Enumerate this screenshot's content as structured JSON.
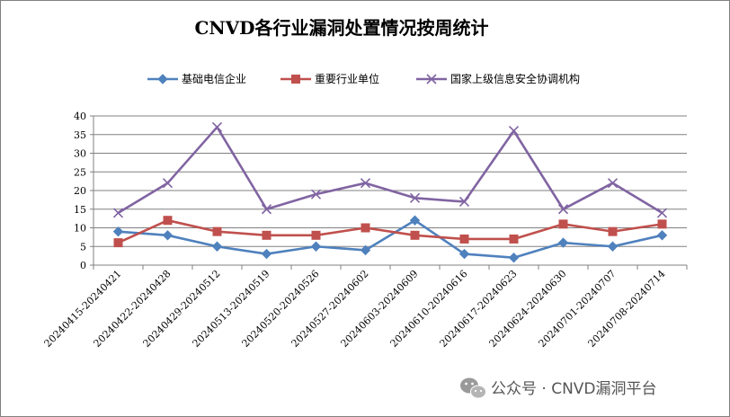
{
  "chart_data": {
    "type": "line",
    "title": "CNVD各行业漏洞处置情况按周统计",
    "categories": [
      "20240415-20240421",
      "20240422-20240428",
      "20240429-20240512",
      "20240513-20240519",
      "20240520-20240526",
      "20240527-20240602",
      "20240603-20240609",
      "20240610-20240616",
      "20240617-20240623",
      "20240624-20240630",
      "20240701-20240707",
      "20240708-20240714"
    ],
    "series": [
      {
        "name": "基础电信企业",
        "color": "#4F81BD",
        "marker": "diamond",
        "values": [
          9,
          8,
          5,
          3,
          5,
          4,
          12,
          3,
          2,
          6,
          5,
          8
        ]
      },
      {
        "name": "重要行业单位",
        "color": "#C0504D",
        "marker": "square",
        "values": [
          6,
          12,
          9,
          8,
          8,
          10,
          8,
          7,
          7,
          11,
          9,
          11
        ]
      },
      {
        "name": "国家上级信息安全协调机构",
        "color": "#8064A2",
        "marker": "x",
        "values": [
          14,
          22,
          37,
          15,
          19,
          22,
          18,
          17,
          36,
          15,
          22,
          14
        ]
      }
    ],
    "ylim": [
      0,
      40
    ],
    "yticks": [
      0,
      5,
      10,
      15,
      20,
      25,
      30,
      35,
      40
    ],
    "grid": true,
    "legend_position": "top",
    "xlabel": "",
    "ylabel": ""
  },
  "watermark": {
    "text": "公众号 · CNVD漏洞平台",
    "icon": "wechat-icon"
  },
  "colors": {
    "background": "#ffffff",
    "border": "#808080",
    "gridline": "#808080",
    "axis": "#808080"
  }
}
